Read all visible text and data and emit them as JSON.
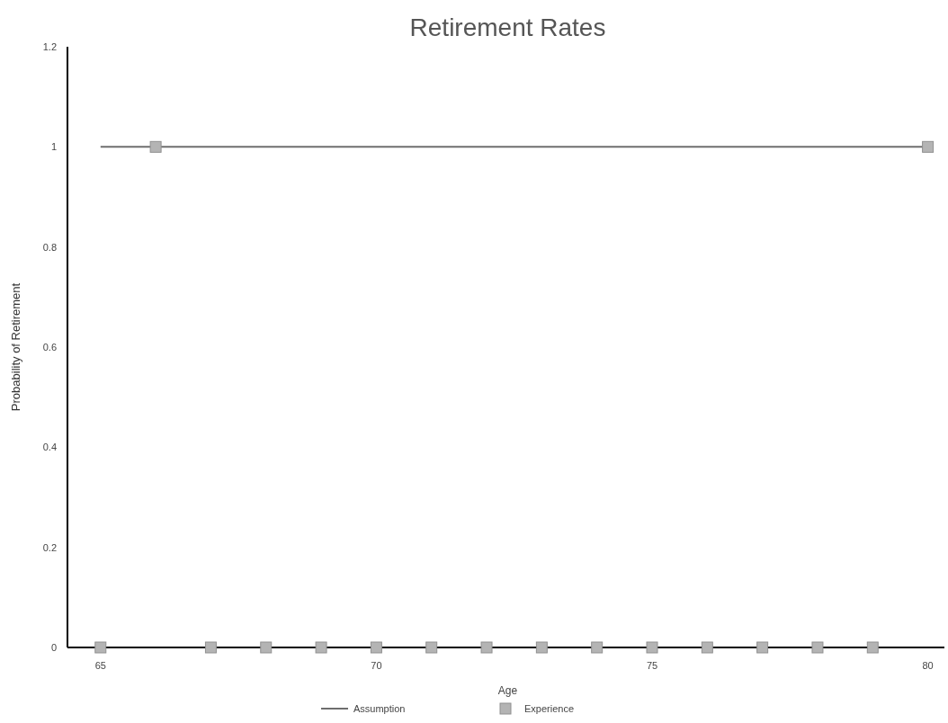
{
  "chart_data": {
    "type": "line",
    "title": "Retirement Rates",
    "xlabel": "Age",
    "ylabel": "Probability of Retirement",
    "xlim": [
      64.4,
      80.3
    ],
    "xticks": [
      65,
      70,
      75,
      80
    ],
    "ylim": [
      0,
      1.2
    ],
    "yticks": [
      0,
      0.2,
      0.4,
      0.6,
      0.8,
      1,
      1.2
    ],
    "grid": false,
    "legend": "bottom",
    "series": [
      {
        "name": "Assumption",
        "type": "line",
        "color": "#6e6e6e",
        "marker": "none",
        "line_style": "solid",
        "x": [
          65,
          66,
          67,
          68,
          69,
          70,
          71,
          72,
          73,
          74,
          75,
          76,
          77,
          78,
          79,
          80
        ],
        "values": [
          1,
          1,
          1,
          1,
          1,
          1,
          1,
          1,
          1,
          1,
          1,
          1,
          1,
          1,
          1,
          1
        ]
      },
      {
        "name": "Experience",
        "type": "scatter",
        "color": "#b4b4b4",
        "marker": "square",
        "x": [
          65,
          66,
          67,
          68,
          69,
          70,
          71,
          72,
          73,
          74,
          75,
          76,
          77,
          78,
          79,
          80
        ],
        "values": [
          0,
          1,
          0,
          0,
          0,
          0,
          0,
          0,
          0,
          0,
          0,
          0,
          0,
          0,
          0,
          1
        ]
      }
    ]
  }
}
